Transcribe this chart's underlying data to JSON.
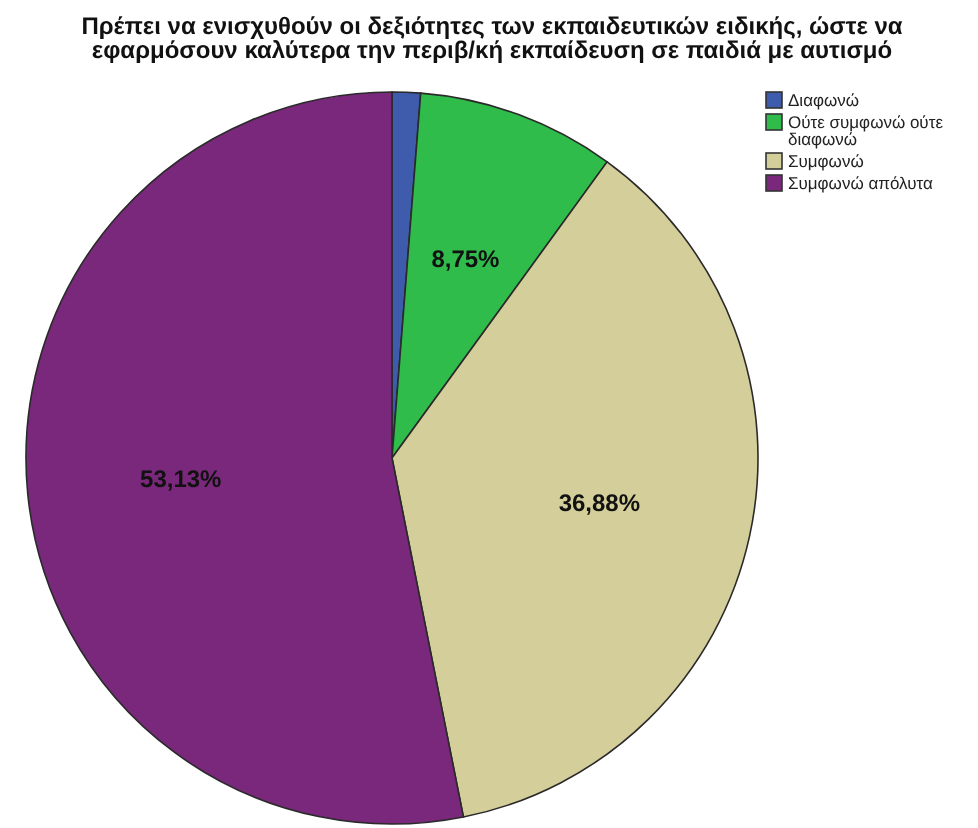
{
  "chart_data": {
    "type": "pie",
    "title": "Πρέπει να ενισχυθούν οι δεξιότητες των εκπαιδευτικών ειδικής, ώστε να\nεφαρμόσουν καλύτερα την περιβ/κή εκπαίδευση σε παιδιά με αυτισμό",
    "categories": [
      "Διαφωνώ",
      "Ούτε συμφωνώ ούτε διαφωνώ",
      "Συμφωνώ",
      "Συμφωνώ απόλυτα"
    ],
    "values": [
      1.25,
      8.75,
      36.88,
      53.13
    ],
    "colors": [
      "#3f5bab",
      "#2fbc4a",
      "#d4cf9a",
      "#79287b"
    ],
    "value_labels": [
      null,
      "8,75%",
      "36,88%",
      "53,13%"
    ],
    "legend": "top right"
  }
}
